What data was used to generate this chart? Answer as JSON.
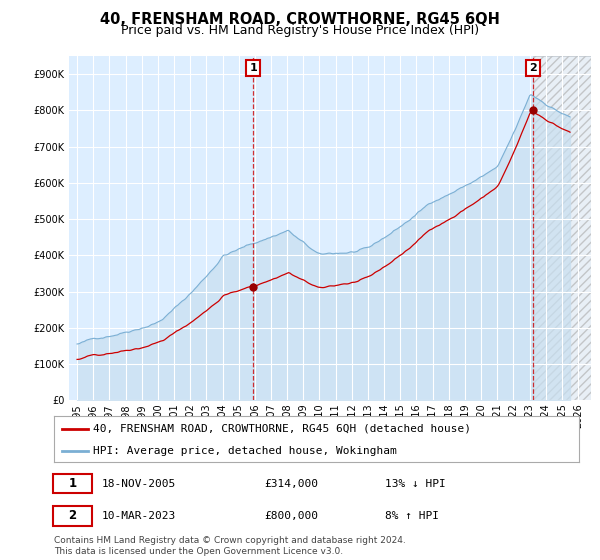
{
  "title": "40, FRENSHAM ROAD, CROWTHORNE, RG45 6QH",
  "subtitle": "Price paid vs. HM Land Registry's House Price Index (HPI)",
  "sale1_date": "18-NOV-2005",
  "sale1_price": 314000,
  "sale1_label": "13% ↓ HPI",
  "sale2_date": "10-MAR-2023",
  "sale2_price": 800000,
  "sale2_label": "8% ↑ HPI",
  "legend_line1": "40, FRENSHAM ROAD, CROWTHORNE, RG45 6QH (detached house)",
  "legend_line2": "HPI: Average price, detached house, Wokingham",
  "footer": "Contains HM Land Registry data © Crown copyright and database right 2024.\nThis data is licensed under the Open Government Licence v3.0.",
  "hpi_color": "#7bafd4",
  "hpi_fill_color": "#c8dff0",
  "price_color": "#cc0000",
  "sale_marker_color": "#990000",
  "annotation_box_color": "#cc0000",
  "plot_bg_color": "#ddeeff",
  "background_color": "#ffffff",
  "grid_color": "#ffffff",
  "title_fontsize": 10.5,
  "subtitle_fontsize": 9,
  "tick_fontsize": 7,
  "legend_fontsize": 8,
  "footer_fontsize": 6.5,
  "ylim_min": 0,
  "ylim_max": 950000,
  "yticks": [
    0,
    100000,
    200000,
    300000,
    400000,
    500000,
    600000,
    700000,
    800000,
    900000
  ],
  "xlim_min": 1994.5,
  "xlim_max": 2026.8,
  "xticks": [
    1995,
    1996,
    1997,
    1998,
    1999,
    2000,
    2001,
    2002,
    2003,
    2004,
    2005,
    2006,
    2007,
    2008,
    2009,
    2010,
    2011,
    2012,
    2013,
    2014,
    2015,
    2016,
    2017,
    2018,
    2019,
    2020,
    2021,
    2022,
    2023,
    2024,
    2025,
    2026
  ],
  "sale1_x": 2005.9,
  "sale1_y": 314000,
  "sale2_x": 2023.2,
  "sale2_y": 800000,
  "hatch_start_x": 2023.2
}
